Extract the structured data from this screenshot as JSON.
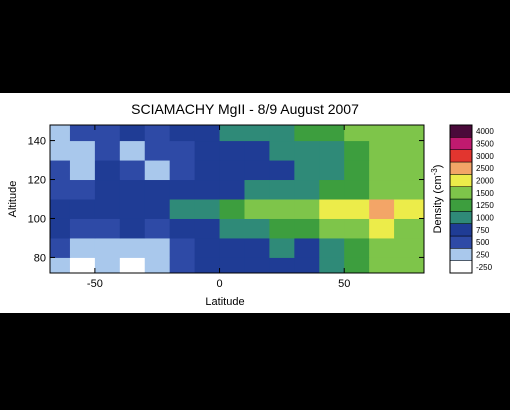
{
  "chart_data": {
    "type": "heatmap",
    "title": "SCIAMACHY MgII - 8/9 August 2007",
    "xlabel": "Latitude",
    "ylabel": "Altitude",
    "colorbar_label": "Density (cm",
    "colorbar_label_sup": "-3",
    "colorbar_label_end": ")",
    "xlim": [
      -68,
      82
    ],
    "ylim": [
      72,
      148
    ],
    "x_ticks": [
      -50,
      0,
      50
    ],
    "y_ticks": [
      80,
      100,
      120,
      140
    ],
    "x_tick_labels": [
      "-50",
      "0",
      "50"
    ],
    "y_tick_labels": [
      "80",
      "100",
      "120",
      "140"
    ],
    "levels": [
      -250,
      250,
      500,
      750,
      1000,
      1250,
      1500,
      2000,
      2500,
      3000,
      3500,
      4000
    ],
    "level_labels": [
      "-250",
      "250",
      "500",
      "750",
      "1000",
      "1250",
      "1500",
      "2000",
      "2500",
      "3000",
      "3500",
      "4000"
    ],
    "level_colors": [
      "#ffffff",
      "#a9c8ec",
      "#2e4aa6",
      "#1f3c95",
      "#2f8a78",
      "#3d9e3e",
      "#7ec54a",
      "#ecec4a",
      "#f3a567",
      "#e2352f",
      "#c01a6f",
      "#4a0a3a"
    ],
    "x": [
      -65,
      -55,
      -45,
      -35,
      -25,
      -15,
      -5,
      5,
      15,
      25,
      35,
      45,
      55,
      65,
      75,
      80
    ],
    "y": [
      75,
      85,
      95,
      105,
      115,
      125,
      135,
      145
    ],
    "z": [
      [
        250,
        0,
        250,
        0,
        250,
        500,
        750,
        750,
        750,
        750,
        750,
        1000,
        1250,
        1500,
        1500,
        1500
      ],
      [
        500,
        250,
        250,
        250,
        250,
        500,
        750,
        750,
        750,
        1000,
        750,
        1000,
        1250,
        1500,
        1500,
        1500
      ],
      [
        750,
        500,
        500,
        750,
        500,
        750,
        750,
        1000,
        1000,
        1250,
        1250,
        1500,
        1500,
        2000,
        1500,
        1500
      ],
      [
        750,
        750,
        750,
        750,
        750,
        1000,
        1000,
        1250,
        1500,
        1500,
        1500,
        2000,
        2000,
        2500,
        2000,
        2000
      ],
      [
        500,
        500,
        750,
        750,
        750,
        750,
        750,
        750,
        1000,
        1000,
        1000,
        1250,
        1250,
        1500,
        1500,
        1500
      ],
      [
        500,
        250,
        750,
        500,
        250,
        500,
        750,
        750,
        750,
        750,
        1000,
        1000,
        1250,
        1500,
        1500,
        1500
      ],
      [
        250,
        250,
        500,
        250,
        500,
        500,
        750,
        750,
        750,
        1000,
        1000,
        1000,
        1250,
        1500,
        1500,
        1500
      ],
      [
        250,
        500,
        500,
        750,
        500,
        750,
        750,
        1000,
        1000,
        1000,
        1250,
        1250,
        1500,
        1500,
        1500,
        1500
      ]
    ],
    "grid": false,
    "legend": "colorbar-right"
  }
}
